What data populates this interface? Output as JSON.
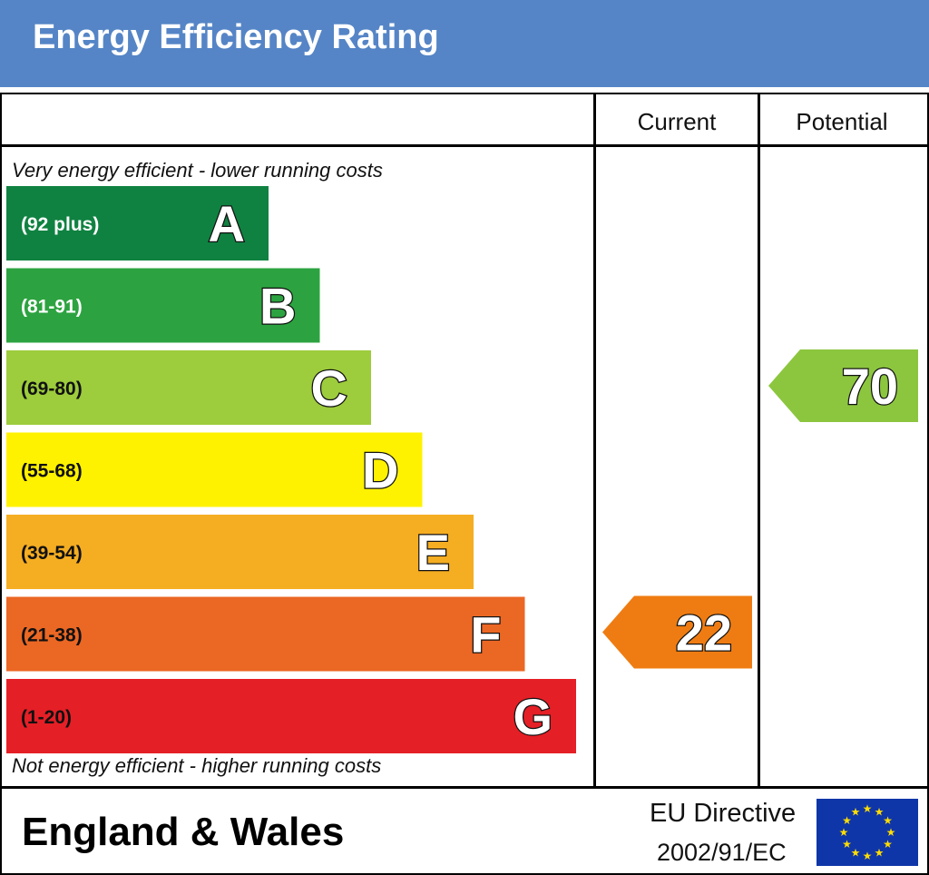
{
  "header": {
    "title": "Energy Efficiency Rating"
  },
  "table": {
    "current_label": "Current",
    "potential_label": "Potential",
    "top_note": "Very energy efficient - lower running costs",
    "bottom_note": "Not energy efficient - higher running costs"
  },
  "chart_data": {
    "type": "bar",
    "categories": [
      "A",
      "B",
      "C",
      "D",
      "E",
      "F",
      "G"
    ],
    "ranges": [
      "(92 plus)",
      "(81-91)",
      "(69-80)",
      "(55-68)",
      "(39-54)",
      "(21-38)",
      "(1-20)"
    ],
    "band_colors": [
      "#0f8241",
      "#2ca340",
      "#9dcc3c",
      "#fff200",
      "#f5ad22",
      "#eb6724",
      "#e51f26"
    ],
    "range_text_colors": [
      "#ffffff",
      "#ffffff",
      "#111111",
      "#111111",
      "#111111",
      "#111111",
      "#111111"
    ],
    "current": {
      "value": 22,
      "band": "F",
      "color": "#ef7c12"
    },
    "potential": {
      "value": 70,
      "band": "C",
      "color": "#8cc63f"
    }
  },
  "footer": {
    "region": "England & Wales",
    "directive_line1": "EU Directive",
    "directive_line2": "2002/91/EC",
    "flag_icon": "eu-flag-icon"
  }
}
